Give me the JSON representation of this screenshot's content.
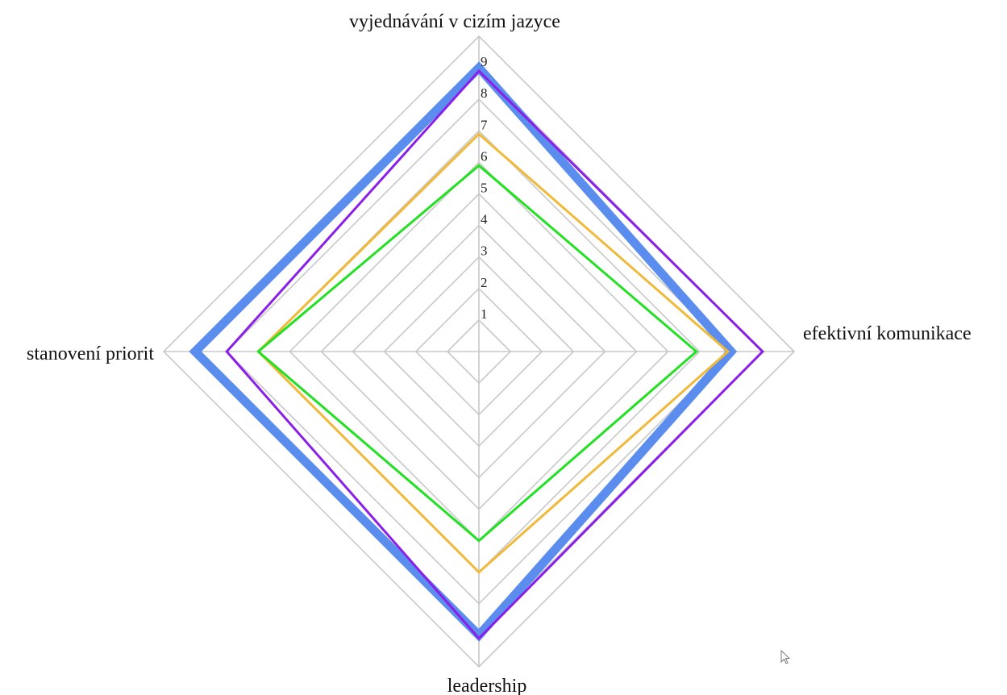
{
  "chart_data": {
    "type": "radar",
    "axes": [
      "vyjednávání v cizím jazyce",
      "efektivní komunikace",
      "leadership",
      "stanovení priorit"
    ],
    "ticks": [
      "1",
      "2",
      "3",
      "4",
      "5",
      "6",
      "7",
      "8",
      "9"
    ],
    "range": [
      0,
      10
    ],
    "grid_levels": 10,
    "grid": true,
    "series": [
      {
        "color": "#5b8def",
        "values": [
          9.0,
          8.0,
          9.0,
          9.0
        ],
        "style": "thick"
      },
      {
        "color": "#8b1ee8",
        "values": [
          8.9,
          9.0,
          9.1,
          8.0
        ]
      },
      {
        "color": "#f0b93a",
        "values": [
          6.9,
          7.9,
          7.0,
          7.0
        ]
      },
      {
        "color": "#22e022",
        "values": [
          5.9,
          6.9,
          6.0,
          7.0
        ]
      }
    ],
    "colors": {
      "grid": "#c8c8c8",
      "axis": "#c8c8c8"
    }
  },
  "cursor": {
    "icon": "mouse-pointer-icon"
  }
}
